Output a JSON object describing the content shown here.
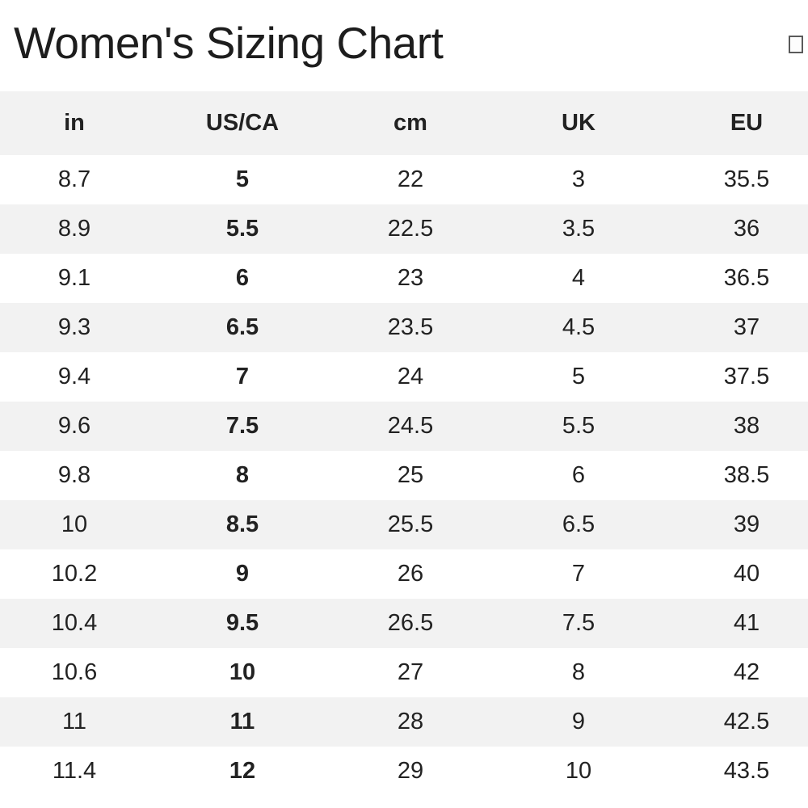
{
  "page": {
    "title": "Women's Sizing Chart"
  },
  "header": {
    "corner_icon": "placeholder-box-icon"
  },
  "colors": {
    "stripe_bg": "#f2f2f2",
    "header_bg": "#f2f2f2",
    "text": "#222222",
    "title_text": "#1d1d1d",
    "page_bg": "#ffffff"
  },
  "table": {
    "columns": [
      "in",
      "US/CA",
      "cm",
      "UK",
      "EU"
    ],
    "bold_column_index": 1,
    "rows": [
      [
        "8.7",
        "5",
        "22",
        "3",
        "35.5"
      ],
      [
        "8.9",
        "5.5",
        "22.5",
        "3.5",
        "36"
      ],
      [
        "9.1",
        "6",
        "23",
        "4",
        "36.5"
      ],
      [
        "9.3",
        "6.5",
        "23.5",
        "4.5",
        "37"
      ],
      [
        "9.4",
        "7",
        "24",
        "5",
        "37.5"
      ],
      [
        "9.6",
        "7.5",
        "24.5",
        "5.5",
        "38"
      ],
      [
        "9.8",
        "8",
        "25",
        "6",
        "38.5"
      ],
      [
        "10",
        "8.5",
        "25.5",
        "6.5",
        "39"
      ],
      [
        "10.2",
        "9",
        "26",
        "7",
        "40"
      ],
      [
        "10.4",
        "9.5",
        "26.5",
        "7.5",
        "41"
      ],
      [
        "10.6",
        "10",
        "27",
        "8",
        "42"
      ],
      [
        "11",
        "11",
        "28",
        "9",
        "42.5"
      ],
      [
        "11.4",
        "12",
        "29",
        "10",
        "43.5"
      ]
    ]
  }
}
